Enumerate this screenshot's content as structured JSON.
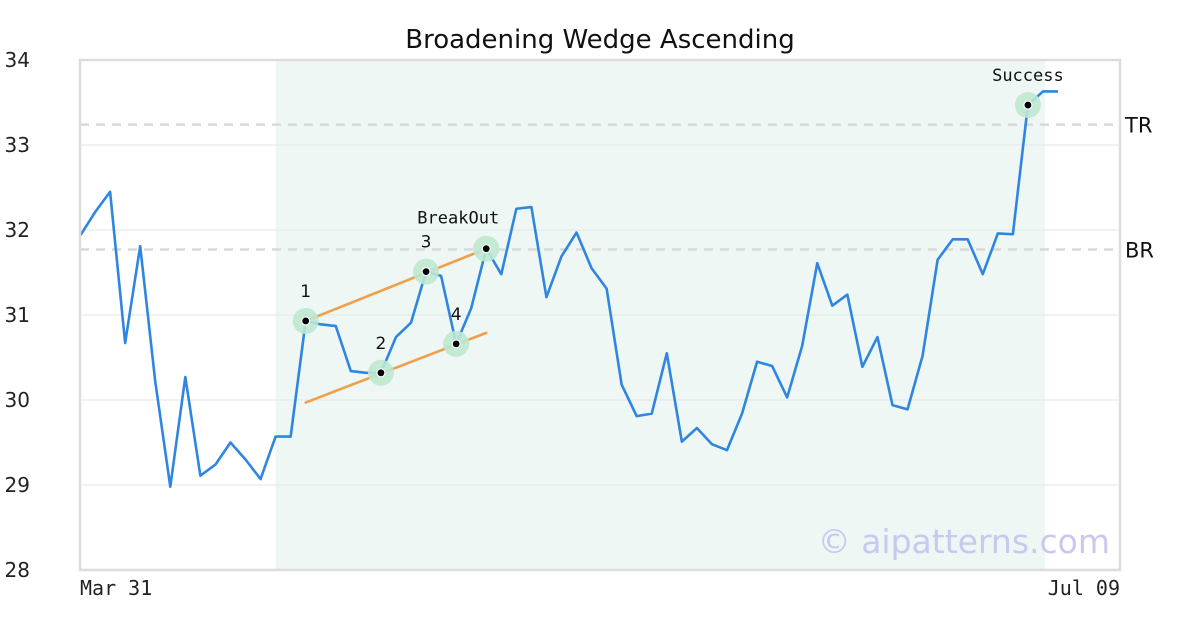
{
  "chart_data": {
    "type": "line",
    "title": "Broadening Wedge Ascending",
    "xlabel": "",
    "ylabel": "",
    "ylim": [
      28,
      34
    ],
    "yticks": [
      "28",
      "29",
      "30",
      "31",
      "32",
      "33",
      "34"
    ],
    "xtick_labels": [
      "Mar 31",
      "Jul 09"
    ],
    "grid": true,
    "series": [
      {
        "values": [
          31.93,
          32.21,
          32.45,
          30.67,
          31.81,
          30.22,
          28.98,
          30.27,
          29.11,
          29.24,
          29.5,
          29.3,
          29.07,
          29.57,
          29.57,
          30.93,
          30.89,
          30.87,
          30.34,
          30.32,
          30.32,
          30.74,
          30.91,
          31.51,
          31.46,
          30.66,
          31.08,
          31.78,
          31.48,
          32.25,
          32.27,
          31.21,
          31.69,
          31.97,
          31.55,
          31.31,
          30.18,
          29.81,
          29.84,
          30.55,
          29.51,
          29.67,
          29.48,
          29.41,
          29.84,
          30.45,
          30.4,
          30.03,
          30.64,
          31.61,
          31.11,
          31.24,
          30.39,
          30.74,
          29.94,
          29.89,
          30.52,
          31.65,
          31.89,
          31.89,
          31.48,
          31.96,
          31.95,
          33.47,
          33.63,
          33.63
        ]
      }
    ],
    "highlight_range": {
      "start_index": 13,
      "end_index": 64
    },
    "levels": [
      {
        "label": "TR",
        "value": 33.24
      },
      {
        "label": "BR",
        "value": 31.77
      }
    ],
    "trendlines": [
      {
        "from": [
          15,
          30.93
        ],
        "to": [
          27,
          31.78
        ]
      },
      {
        "from": [
          15,
          29.97
        ],
        "to": [
          27,
          30.79
        ]
      }
    ],
    "points": [
      {
        "label": "1",
        "index": 15,
        "value": 30.93
      },
      {
        "label": "2",
        "index": 20,
        "value": 30.32
      },
      {
        "label": "3",
        "index": 23,
        "value": 31.51
      },
      {
        "label": "4",
        "index": 25,
        "value": 30.66
      }
    ],
    "annotations": [
      {
        "text": "BreakOut",
        "index": 27,
        "value": 31.78
      },
      {
        "text": "Success",
        "index": 63,
        "value": 33.47
      }
    ],
    "watermark": "© aipatterns.com",
    "colors": {
      "line": "#2f86e0",
      "trendline": "#f0a04b",
      "highlight": "#eef7f3",
      "marker_halo": "#bde8d2",
      "level_line": "#d9d9d9",
      "grid": "#e6e6e6",
      "frame": "#dddddd",
      "watermark": "#c8c8f0"
    }
  }
}
